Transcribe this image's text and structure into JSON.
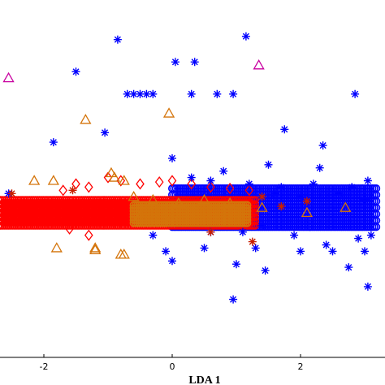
{
  "chart_data": {
    "type": "scatter",
    "title": "",
    "xlabel": "LDA 1",
    "ylabel": "",
    "xlim": [
      -2.7,
      3.2
    ],
    "ylim": [
      -2.5,
      3.1
    ],
    "grid": false,
    "xticks": [
      {
        "value": -2,
        "label": "-2"
      },
      {
        "value": 0,
        "label": "0"
      },
      {
        "value": 2,
        "label": "2"
      }
    ],
    "series": [
      {
        "marker": "diamond",
        "color": "#ff0000",
        "points": [
          [
            -1.7,
            0.35
          ],
          [
            -1.5,
            0.45
          ],
          [
            -1.3,
            0.4
          ],
          [
            -1.0,
            0.55
          ],
          [
            -0.8,
            0.5
          ],
          [
            -0.5,
            0.45
          ],
          [
            -0.2,
            0.48
          ],
          [
            0.0,
            0.5
          ],
          [
            0.3,
            0.45
          ],
          [
            0.6,
            0.4
          ],
          [
            0.9,
            0.38
          ],
          [
            1.2,
            0.35
          ],
          [
            -1.6,
            -0.25
          ],
          [
            -1.3,
            -0.35
          ],
          [
            -1.5,
            -0.15
          ]
        ]
      },
      {
        "marker": "triangle",
        "color": "#d4740a",
        "points": [
          [
            -1.35,
            1.45
          ],
          [
            -2.15,
            0.5
          ],
          [
            -1.85,
            0.5
          ],
          [
            -0.95,
            0.62
          ],
          [
            -0.9,
            0.55
          ],
          [
            -0.75,
            0.5
          ],
          [
            -0.6,
            0.25
          ],
          [
            -0.3,
            0.2
          ],
          [
            0.1,
            0.15
          ],
          [
            0.5,
            0.2
          ],
          [
            0.9,
            0.15
          ],
          [
            1.4,
            0.08
          ],
          [
            2.7,
            0.08
          ],
          [
            -1.2,
            -0.55
          ],
          [
            -1.2,
            -0.58
          ],
          [
            -0.8,
            -0.65
          ],
          [
            -0.75,
            -0.65
          ],
          [
            -1.8,
            -0.55
          ],
          [
            0.0,
            -0.05
          ],
          [
            -0.5,
            -0.05
          ],
          [
            -0.05,
            1.55
          ],
          [
            2.1,
            0.0
          ]
        ]
      },
      {
        "marker": "triangle",
        "color": "#c800a0",
        "points": [
          [
            -2.55,
            2.1
          ],
          [
            1.35,
            2.3
          ]
        ]
      },
      {
        "marker": "star",
        "color": "#0000ff",
        "points": [
          [
            -0.85,
            2.7
          ],
          [
            0.05,
            2.35
          ],
          [
            0.35,
            2.35
          ],
          [
            -1.5,
            2.2
          ],
          [
            1.15,
            2.75
          ],
          [
            -0.7,
            1.85
          ],
          [
            -0.6,
            1.85
          ],
          [
            -0.5,
            1.85
          ],
          [
            -0.4,
            1.85
          ],
          [
            -0.3,
            1.85
          ],
          [
            0.3,
            1.85
          ],
          [
            0.7,
            1.85
          ],
          [
            0.95,
            1.85
          ],
          [
            2.85,
            1.85
          ],
          [
            -1.85,
            1.1
          ],
          [
            -1.05,
            1.25
          ],
          [
            1.75,
            1.3
          ],
          [
            2.35,
            1.05
          ],
          [
            0.0,
            0.85
          ],
          [
            1.5,
            0.75
          ],
          [
            0.8,
            0.65
          ],
          [
            2.3,
            0.7
          ],
          [
            0.3,
            0.55
          ],
          [
            0.6,
            0.5
          ],
          [
            1.2,
            0.45
          ],
          [
            1.7,
            0.4
          ],
          [
            2.2,
            0.45
          ],
          [
            2.8,
            0.4
          ],
          [
            3.05,
            0.5
          ],
          [
            1.6,
            0.3
          ],
          [
            2.0,
            0.25
          ],
          [
            2.6,
            0.3
          ],
          [
            3.0,
            0.2
          ],
          [
            0.6,
            -0.3
          ],
          [
            1.1,
            -0.3
          ],
          [
            1.4,
            -0.2
          ],
          [
            1.9,
            -0.35
          ],
          [
            2.4,
            -0.5
          ],
          [
            2.9,
            -0.4
          ],
          [
            3.1,
            -0.35
          ],
          [
            0.5,
            -0.55
          ],
          [
            1.3,
            -0.55
          ],
          [
            2.0,
            -0.6
          ],
          [
            2.5,
            -0.6
          ],
          [
            3.0,
            -0.6
          ],
          [
            0.0,
            -0.75
          ],
          [
            1.0,
            -0.8
          ],
          [
            1.45,
            -0.9
          ],
          [
            2.75,
            -0.85
          ],
          [
            -0.3,
            -0.35
          ],
          [
            -0.1,
            -0.6
          ],
          [
            -2.55,
            0.3
          ],
          [
            3.05,
            -1.15
          ],
          [
            0.95,
            -1.35
          ]
        ]
      },
      {
        "marker": "star",
        "color": "#c81e00",
        "points": [
          [
            -2.5,
            0.3
          ],
          [
            1.4,
            0.25
          ],
          [
            1.7,
            0.1
          ],
          [
            2.1,
            0.18
          ],
          [
            1.25,
            -0.45
          ],
          [
            0.6,
            -0.3
          ],
          [
            -1.55,
            0.35
          ]
        ]
      }
    ],
    "bands": [
      {
        "color": "#0000ff",
        "x": [
          0.0,
          3.2
        ],
        "y_center": 0.08,
        "y_half": 0.3
      },
      {
        "color": "#ff0000",
        "x": [
          -2.7,
          1.3
        ],
        "y_center": 0.0,
        "y_half": 0.2
      },
      {
        "color": "#d4740a",
        "x": [
          -0.6,
          1.2
        ],
        "y_center": -0.02,
        "y_half": 0.14
      }
    ]
  }
}
